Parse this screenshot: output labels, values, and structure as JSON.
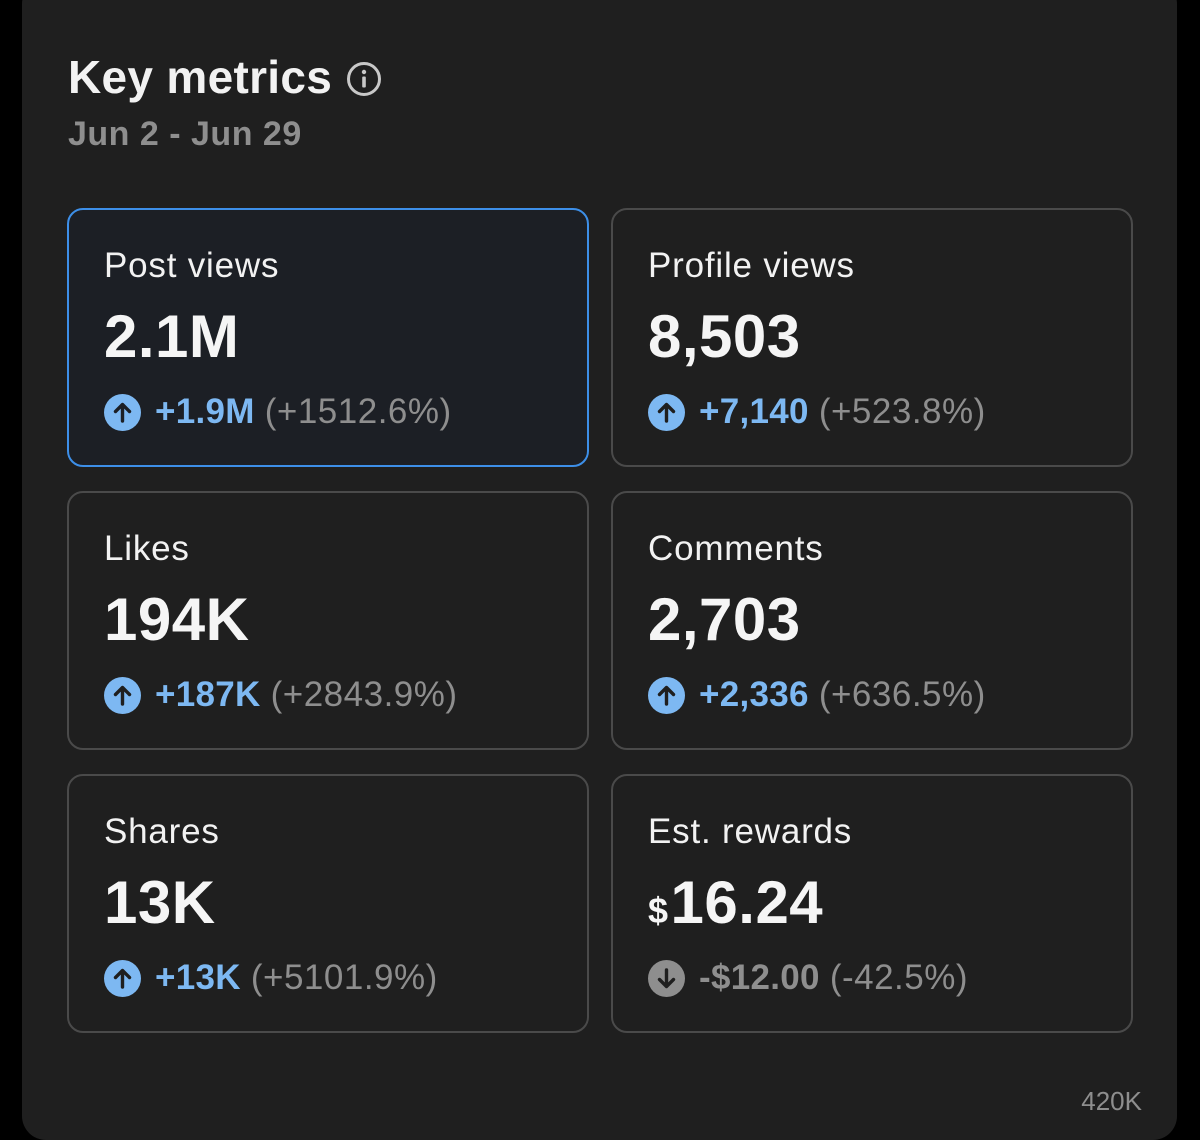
{
  "header": {
    "title": "Key metrics",
    "date_range": "Jun 2 - Jun 29"
  },
  "metrics": [
    {
      "label": "Post views",
      "value": "2.1M",
      "delta": "+1.9M",
      "pct": "(+1512.6%)",
      "trend": "up",
      "selected": true
    },
    {
      "label": "Profile views",
      "value": "8,503",
      "delta": "+7,140",
      "pct": "(+523.8%)",
      "trend": "up",
      "selected": false
    },
    {
      "label": "Likes",
      "value": "194K",
      "delta": "+187K",
      "pct": "(+2843.9%)",
      "trend": "up",
      "selected": false
    },
    {
      "label": "Comments",
      "value": "2,703",
      "delta": "+2,336",
      "pct": "(+636.5%)",
      "trend": "up",
      "selected": false
    },
    {
      "label": "Shares",
      "value": "13K",
      "delta": "+13K",
      "pct": "(+5101.9%)",
      "trend": "up",
      "selected": false
    },
    {
      "label": "Est. rewards",
      "currency": "$",
      "value": "16.24",
      "delta": "-$12.00",
      "pct": "(-42.5%)",
      "trend": "down",
      "selected": false
    }
  ],
  "chart_peek": {
    "axis_label": "420K"
  },
  "colors": {
    "background": "#1f1f1f",
    "selected_border": "#3d8fe8",
    "up_accent": "#7db8f2",
    "muted": "#8e8e8e"
  },
  "icons": {
    "info": "info-icon",
    "up": "arrow-up-circle-icon",
    "down": "arrow-down-circle-icon"
  }
}
